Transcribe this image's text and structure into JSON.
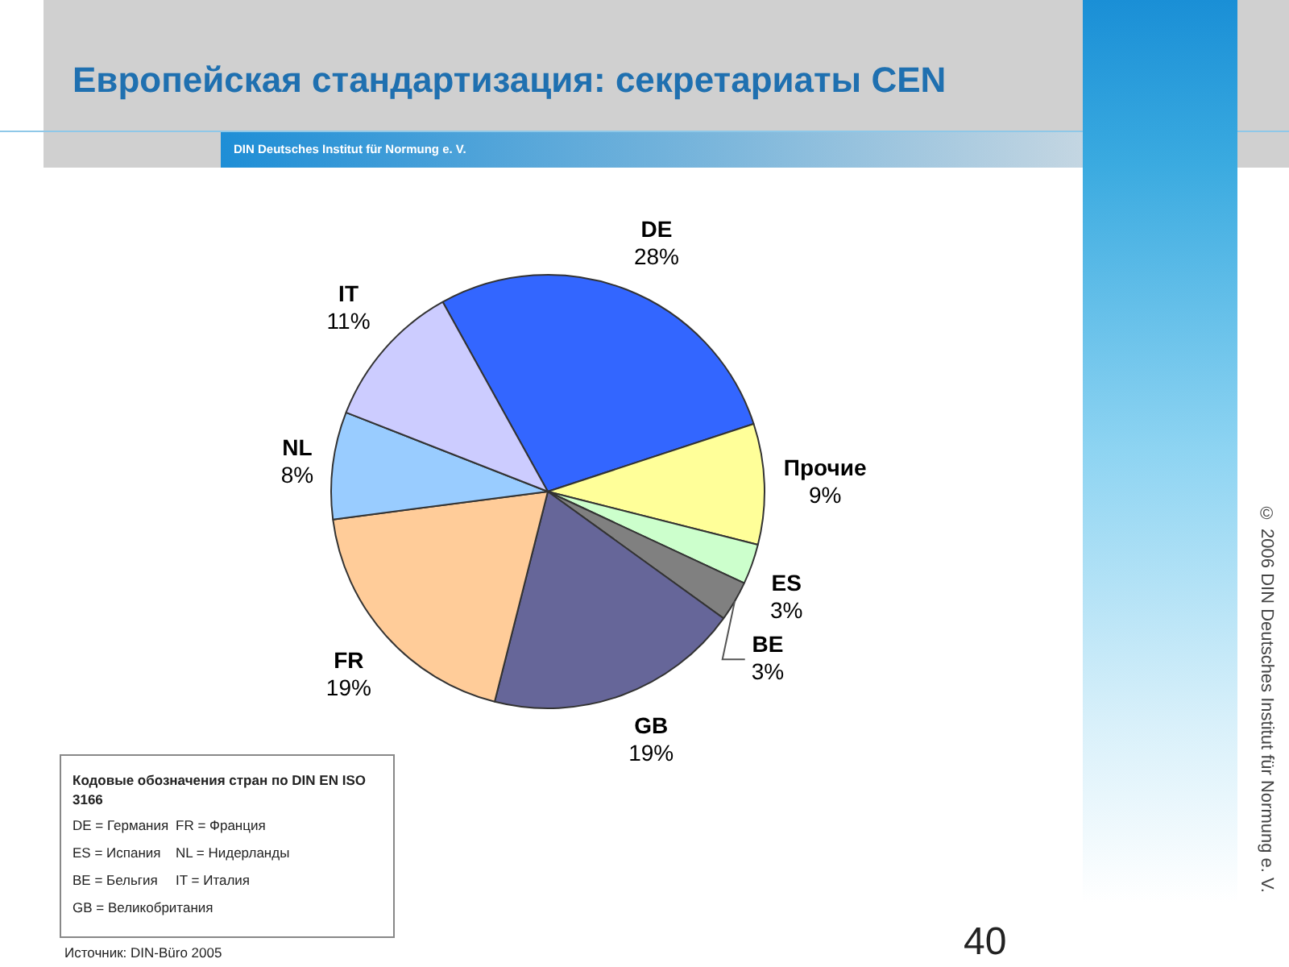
{
  "chart_data": {
    "type": "pie",
    "title": "Европейская стандартизация: секретариаты CEN",
    "subtitle": "DIN Deutsches Institut für Normung e. V.",
    "categories": [
      "DE",
      "Прочие",
      "ES",
      "BE",
      "GB",
      "FR",
      "NL",
      "IT"
    ],
    "values": [
      28,
      9,
      3,
      3,
      19,
      19,
      8,
      11
    ],
    "colors": [
      "#3366ff",
      "#ffff99",
      "#ccffcc",
      "#808080",
      "#666699",
      "#ffcc99",
      "#99ccff",
      "#ccccff"
    ],
    "value_labels": [
      "28%",
      "9%",
      "3%",
      "3%",
      "19%",
      "19%",
      "8%",
      "11%"
    ],
    "annotations": [
      "Кодовые обозначения стран по DIN EN ISO 3166",
      "DE = Германия",
      "FR = Франция",
      "ES = Испания",
      "NL = Нидерланды",
      "BE = Бельгия",
      "IT = Италия",
      "GB = Великобритания",
      "Источник: DIN-Büro 2005",
      "© 2006 DIN Deutsches Institut für Normung e. V.",
      "40"
    ]
  }
}
